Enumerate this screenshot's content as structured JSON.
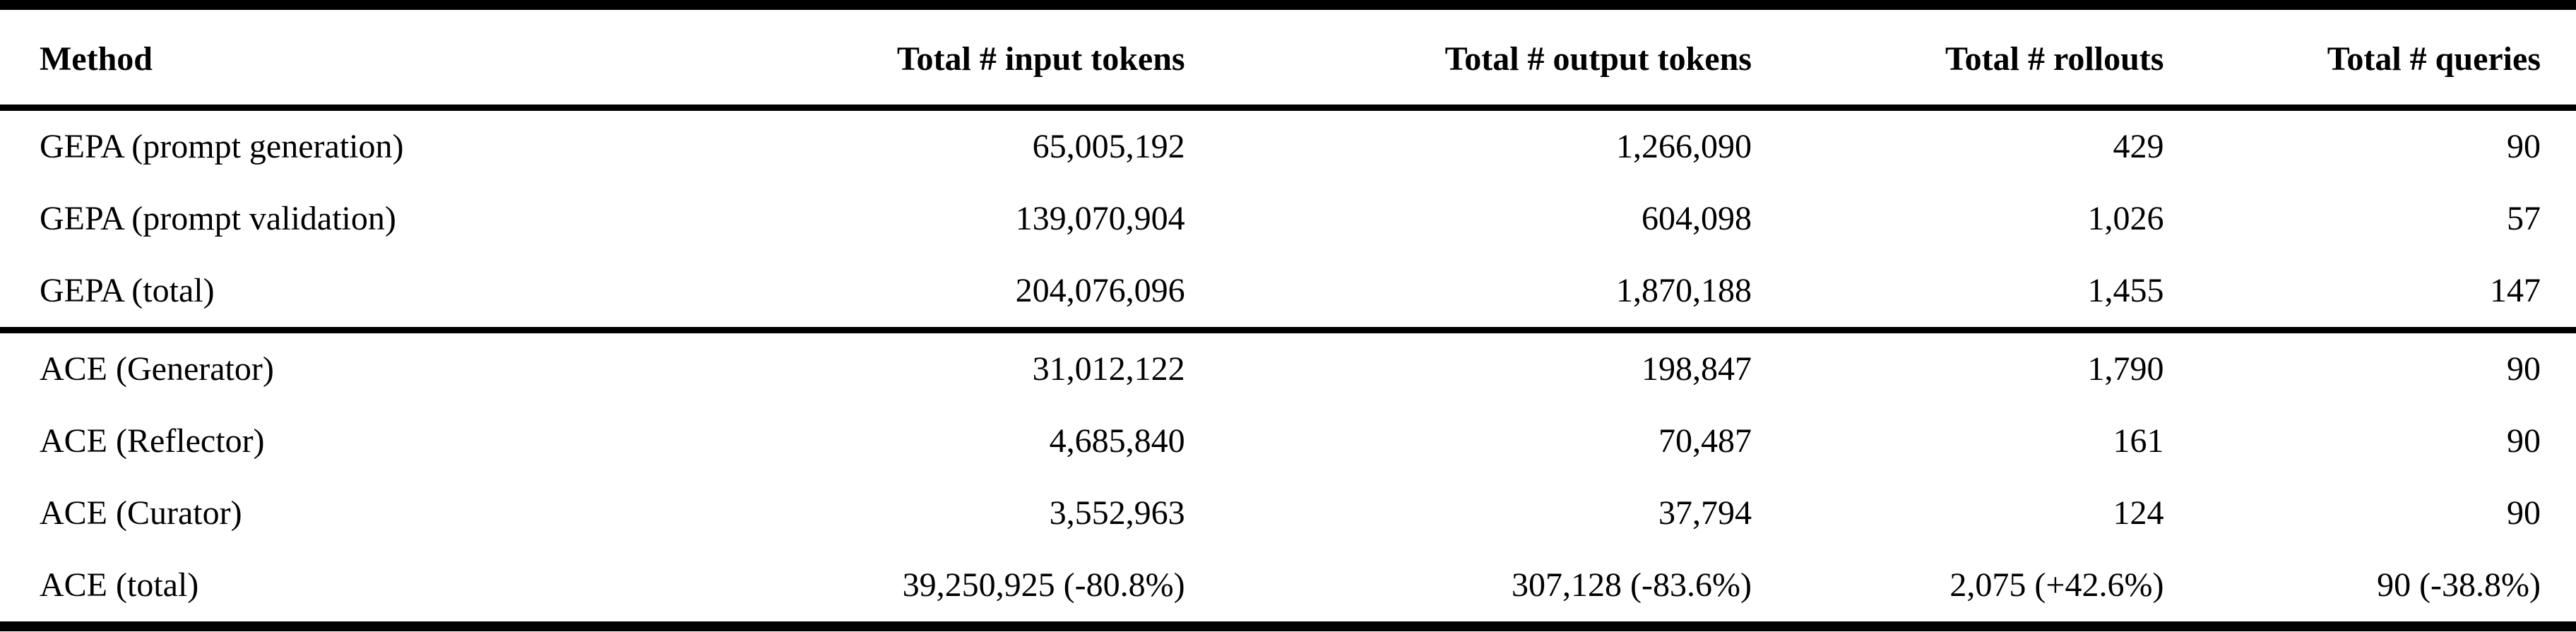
{
  "table": {
    "columns": [
      {
        "label": "Method",
        "align": "left"
      },
      {
        "label": "Total # input tokens",
        "align": "right"
      },
      {
        "label": "Total # output tokens",
        "align": "right"
      },
      {
        "label": "Total # rollouts",
        "align": "right"
      },
      {
        "label": "Total # queries",
        "align": "right"
      }
    ],
    "groups": [
      {
        "name": "gepa",
        "rows": [
          [
            "GEPA (prompt generation)",
            "65,005,192",
            "1,266,090",
            "429",
            "90"
          ],
          [
            "GEPA (prompt validation)",
            "139,070,904",
            "604,098",
            "1,026",
            "57"
          ],
          [
            "GEPA (total)",
            "204,076,096",
            "1,870,188",
            "1,455",
            "147"
          ]
        ]
      },
      {
        "name": "ace",
        "rows": [
          [
            "ACE (Generator)",
            "31,012,122",
            "198,847",
            "1,790",
            "90"
          ],
          [
            "ACE (Reflector)",
            "4,685,840",
            "70,487",
            "161",
            "90"
          ],
          [
            "ACE (Curator)",
            "3,552,963",
            "37,794",
            "124",
            "90"
          ],
          [
            "ACE (total)",
            "39,250,925 (-80.8%)",
            "307,128 (-83.6%)",
            "2,075 (+42.6%)",
            "90 (-38.8%)"
          ]
        ]
      }
    ]
  },
  "colors": {
    "text": "#000000",
    "background": "#ffffff",
    "rule": "#000000"
  }
}
